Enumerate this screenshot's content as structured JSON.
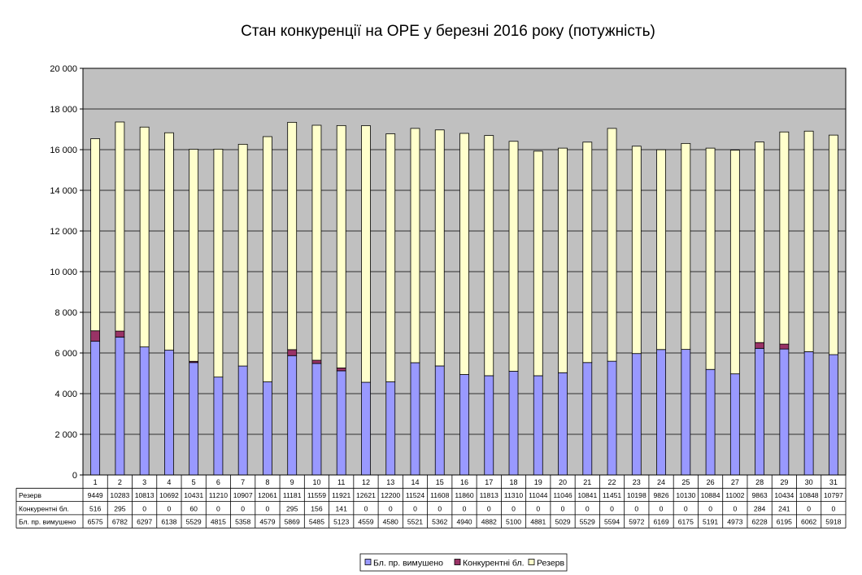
{
  "chart_data": {
    "type": "bar",
    "stacked": true,
    "title": "Стан конкуренції на ОРЕ  у березні 2016 року (потужність)",
    "categories": [
      "1",
      "2",
      "3",
      "4",
      "5",
      "6",
      "7",
      "8",
      "9",
      "10",
      "11",
      "12",
      "13",
      "14",
      "15",
      "16",
      "17",
      "18",
      "19",
      "20",
      "21",
      "22",
      "23",
      "24",
      "25",
      "26",
      "27",
      "28",
      "29",
      "30",
      "31"
    ],
    "ylim": [
      0,
      20000
    ],
    "yticks": [
      "0",
      "2 000",
      "4 000",
      "6 000",
      "8 000",
      "10 000",
      "12 000",
      "14 000",
      "16 000",
      "18 000",
      "20 000"
    ],
    "grid": true,
    "legend_position": "bottom",
    "series": [
      {
        "name": "Бл. пр. вимушено",
        "color": "#9999ff",
        "values": [
          6575,
          6782,
          6297,
          6138,
          5529,
          4815,
          5358,
          4579,
          5869,
          5485,
          5123,
          4559,
          4580,
          5521,
          5362,
          4940,
          4882,
          5100,
          4881,
          5029,
          5529,
          5594,
          5972,
          6169,
          6175,
          5191,
          4973,
          6228,
          6195,
          6062,
          5918
        ]
      },
      {
        "name": "Конкурентні бл.",
        "color": "#993366",
        "values": [
          516,
          295,
          0,
          0,
          60,
          0,
          0,
          0,
          295,
          156,
          141,
          0,
          0,
          0,
          0,
          0,
          0,
          0,
          0,
          0,
          0,
          0,
          0,
          0,
          0,
          0,
          0,
          284,
          241,
          0,
          0
        ]
      },
      {
        "name": "Резерв",
        "color": "#ffffcc",
        "values": [
          9449,
          10283,
          10813,
          10692,
          10431,
          11210,
          10907,
          12061,
          11181,
          11559,
          11921,
          12621,
          12200,
          11524,
          11608,
          11860,
          11813,
          11310,
          11044,
          11046,
          10841,
          11451,
          10198,
          9826,
          10130,
          10884,
          11002,
          9863,
          10434,
          10848,
          10797
        ]
      }
    ],
    "table_rows": [
      "Резерв",
      "Конкурентні бл.",
      "Бл. пр. вимушено"
    ],
    "colors": {
      "plot_background": "#c0c0c0",
      "border": "#000000"
    }
  }
}
